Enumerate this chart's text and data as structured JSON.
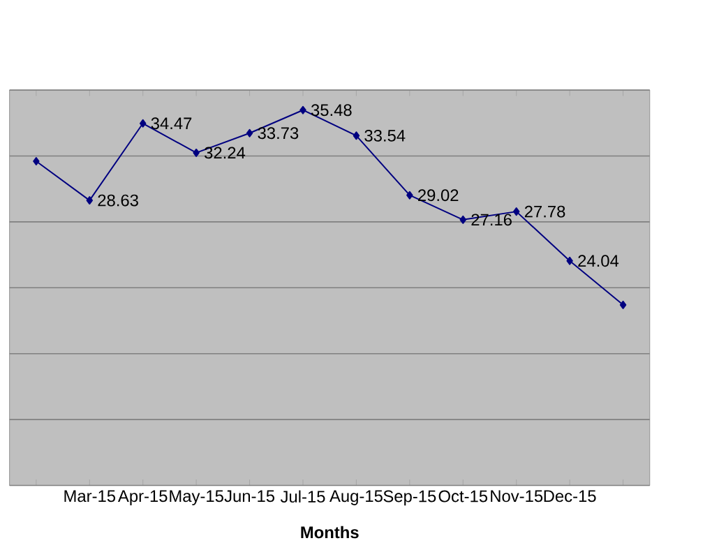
{
  "chart_data": {
    "type": "line",
    "xlabel": "Months",
    "categories": [
      null,
      "Mar-15",
      "Apr-15",
      "May-15",
      "Jun-15",
      "Jul-15",
      "Aug-15",
      "Sep-15",
      "Oct-15",
      "Nov-15",
      "Dec-15",
      null
    ],
    "series": [
      {
        "color": "#000080",
        "values": [
          31.6,
          28.63,
          34.47,
          32.24,
          33.73,
          35.48,
          33.54,
          29.02,
          27.16,
          27.78,
          24.04,
          20.7
        ],
        "value_labels": [
          null,
          "28.63",
          "34.47",
          "32.24",
          "33.73",
          "35.48",
          "33.54",
          "29.02",
          "27.16",
          "27.78",
          "24.04",
          null
        ]
      }
    ],
    "ylim": [
      7,
      37
    ],
    "yticks": [
      {
        "value": 7,
        "label": null
      },
      {
        "value": 12,
        "label": null
      },
      {
        "value": 17,
        "label": null
      },
      {
        "value": 22,
        "label": null
      },
      {
        "value": 27,
        "label": null
      },
      {
        "value": 32,
        "label": null
      },
      {
        "value": 37,
        "label": null
      }
    ],
    "tick_labels": "x",
    "grid": "y",
    "marker": "diamond",
    "line_style": "solid"
  }
}
